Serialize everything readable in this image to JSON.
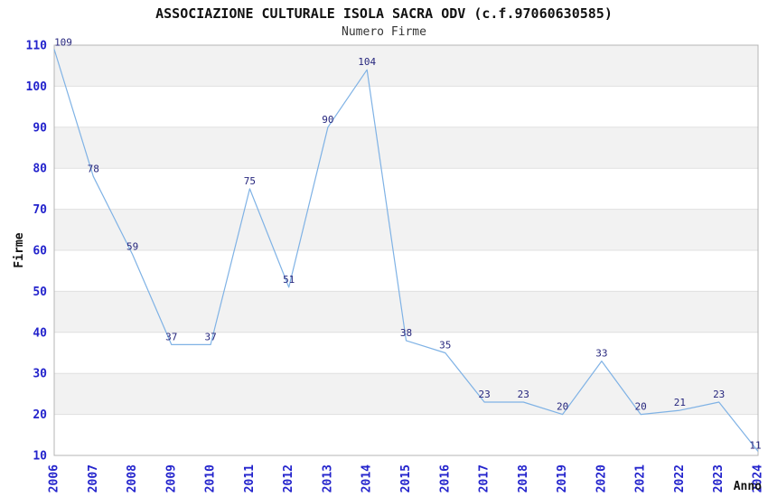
{
  "chart_data": {
    "type": "line",
    "title": "ASSOCIAZIONE CULTURALE ISOLA SACRA ODV (c.f.97060630585)",
    "subtitle": "Numero Firme",
    "xlabel": "Anno",
    "ylabel": "Firme",
    "x": [
      "2006",
      "2007",
      "2008",
      "2009",
      "2010",
      "2011",
      "2012",
      "2013",
      "2014",
      "2015",
      "2016",
      "2017",
      "2018",
      "2019",
      "2020",
      "2021",
      "2022",
      "2023",
      "2024"
    ],
    "series": [
      {
        "name": "Numero Firme",
        "values": [
          109,
          78,
          59,
          37,
          37,
          75,
          51,
          90,
          104,
          38,
          35,
          23,
          23,
          20,
          33,
          20,
          21,
          23,
          11
        ]
      }
    ],
    "ylim": [
      10,
      110
    ],
    "ytick_step": 10,
    "yticks": [
      10,
      20,
      30,
      40,
      50,
      60,
      70,
      80,
      90,
      100,
      110
    ],
    "grid": "horizontal",
    "banded_background": true,
    "legend": "none",
    "point_labels_visible": true,
    "colors": {
      "line": "#7fb2e5",
      "tick_label": "#2323cc",
      "data_label": "#26267d",
      "band": "#f2f2f2",
      "grid": "#e0e0e0",
      "border": "#b5b5b5",
      "title": "#111111",
      "subtitle": "#333333",
      "axis_title": "#111111",
      "background": "#ffffff"
    }
  }
}
